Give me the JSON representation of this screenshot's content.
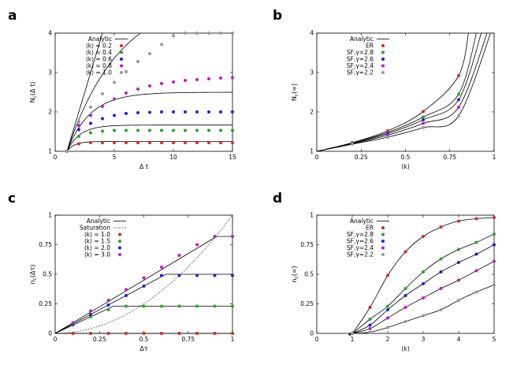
{
  "figure": {
    "panel_letters": [
      "a",
      "b",
      "c",
      "d"
    ]
  },
  "chart_data": [
    {
      "panel": "a",
      "type": "line",
      "xlabel": "Δ t",
      "ylabel": "N_c(Δ t)",
      "xlim": [
        0,
        15
      ],
      "ylim": [
        1,
        4
      ],
      "xticks": [
        0,
        5,
        10,
        15
      ],
      "yticks": [
        1,
        2,
        3,
        4
      ],
      "legend_position": "top-left",
      "legend_title": "Analytic",
      "colors": [
        "#d62728",
        "#2ca02c",
        "#1f1fd6",
        "#c21bc2",
        "#999999"
      ],
      "x": [
        1,
        2,
        3,
        4,
        5,
        6,
        7,
        8,
        9,
        10,
        11,
        12,
        13,
        14,
        15
      ],
      "series": [
        {
          "name": "⟨k⟩ = 0.2",
          "k": 0.2,
          "values": [
            1.0,
            1.19,
            1.22,
            1.22,
            1.22,
            1.22,
            1.22,
            1.22,
            1.22,
            1.22,
            1.22,
            1.22,
            1.22,
            1.22,
            1.22
          ]
        },
        {
          "name": "⟨k⟩ = 0.4",
          "k": 0.4,
          "values": [
            1.0,
            1.38,
            1.47,
            1.51,
            1.53,
            1.53,
            1.53,
            1.53,
            1.53,
            1.53,
            1.53,
            1.53,
            1.53,
            1.53,
            1.53
          ]
        },
        {
          "name": "⟨k⟩ = 0.6",
          "k": 0.6,
          "values": [
            1.0,
            1.55,
            1.71,
            1.83,
            1.91,
            1.96,
            1.98,
            1.99,
            2.0,
            2.0,
            2.0,
            2.0,
            2.0,
            2.0,
            2.0
          ]
        },
        {
          "name": "⟨k⟩ = 0.8",
          "k": 0.8,
          "values": [
            1.0,
            1.66,
            1.91,
            2.14,
            2.33,
            2.48,
            2.58,
            2.66,
            2.72,
            2.76,
            2.8,
            2.82,
            2.84,
            2.86,
            2.87
          ]
        },
        {
          "name": "⟨k⟩ = 1.0",
          "k": 1.0,
          "values": [
            1.0,
            1.75,
            2.12,
            2.46,
            2.75,
            3.02,
            3.28,
            3.48,
            3.71,
            3.93,
            4.0,
            4.0,
            4.0,
            4.0,
            4.0
          ]
        }
      ]
    },
    {
      "panel": "b",
      "type": "line",
      "xlabel": "⟨k⟩",
      "ylabel": "N_c(∞)",
      "xlim": [
        0,
        1
      ],
      "ylim": [
        1,
        4
      ],
      "xticks": [
        "0",
        "0.25",
        "0.5",
        "0.75",
        "1"
      ],
      "yticks": [
        1,
        2,
        3,
        4
      ],
      "legend_position": "top-left",
      "legend_title": "Analytic",
      "colors": [
        "#d62728",
        "#2ca02c",
        "#1f1fd6",
        "#c21bc2",
        "#999999"
      ],
      "x": [
        0.2,
        0.4,
        0.6,
        0.8
      ],
      "series": [
        {
          "name": "ER",
          "values": [
            1.22,
            1.52,
            2.01,
            2.92
          ]
        },
        {
          "name": "SF,γ=2.8",
          "values": [
            1.21,
            1.48,
            1.87,
            2.45
          ]
        },
        {
          "name": "SF,γ=2.6",
          "values": [
            1.2,
            1.45,
            1.8,
            2.31
          ]
        },
        {
          "name": "SF,γ=2.4",
          "values": [
            1.19,
            1.41,
            1.71,
            2.12
          ]
        },
        {
          "name": "SF,γ=2.2",
          "values": [
            1.18,
            1.36,
            1.6,
            1.9
          ]
        }
      ]
    },
    {
      "panel": "c",
      "type": "line",
      "xlabel": "Δτ",
      "ylabel": "n_c(Δτ)",
      "xlim": [
        0,
        1
      ],
      "ylim": [
        0,
        1
      ],
      "xticks": [
        "0",
        "0.25",
        "0.5",
        "0.75",
        "1"
      ],
      "yticks": [
        "0",
        "0.25",
        "0.5",
        "0.75",
        "1"
      ],
      "legend_position": "top-left",
      "legend_title": "Analytic",
      "saturation_label": "Saturation",
      "colors": [
        "#d62728",
        "#2ca02c",
        "#1f1fd6",
        "#c21bc2"
      ],
      "x": [
        0.1,
        0.2,
        0.3,
        0.4,
        0.5,
        0.6,
        0.7,
        0.8,
        0.9,
        1.0
      ],
      "series": [
        {
          "name": "⟨k⟩ = 1.0",
          "k": 1.0,
          "plateau": 0.0,
          "values": [
            0.0,
            0.0,
            0.0,
            0.0,
            0.0,
            0.0,
            0.0,
            0.0,
            0.0,
            0.0
          ]
        },
        {
          "name": "⟨k⟩ = 1.5",
          "k": 1.5,
          "plateau": 0.23,
          "values": [
            0.07,
            0.14,
            0.2,
            0.23,
            0.23,
            0.23,
            0.23,
            0.23,
            0.23,
            0.23
          ]
        },
        {
          "name": "⟨k⟩ = 2.0",
          "k": 2.0,
          "plateau": 0.5,
          "values": [
            0.08,
            0.16,
            0.24,
            0.32,
            0.4,
            0.49,
            0.49,
            0.49,
            0.49,
            0.49
          ]
        },
        {
          "name": "⟨k⟩ = 3.0",
          "k": 3.0,
          "plateau": 0.82,
          "values": [
            0.09,
            0.19,
            0.28,
            0.37,
            0.47,
            0.56,
            0.66,
            0.75,
            0.82,
            0.82
          ]
        }
      ]
    },
    {
      "panel": "d",
      "type": "line",
      "xlabel": "⟨k⟩",
      "ylabel": "n_c(∞)",
      "xlim": [
        0,
        5
      ],
      "ylim": [
        0,
        1
      ],
      "xticks": [
        "0",
        "1",
        "2",
        "3",
        "4",
        "5"
      ],
      "yticks": [
        "0",
        "0.25",
        "0.5",
        "0.75",
        "1"
      ],
      "legend_position": "top-left",
      "legend_title": "Analytic",
      "colors": [
        "#d62728",
        "#2ca02c",
        "#1f1fd6",
        "#c21bc2",
        "#999999"
      ],
      "x": [
        1.0,
        1.5,
        2.0,
        2.5,
        3.0,
        3.5,
        4.0,
        4.5,
        5.0
      ],
      "series": [
        {
          "name": "ER",
          "values": [
            0.0,
            0.22,
            0.49,
            0.69,
            0.82,
            0.9,
            0.95,
            0.97,
            0.98
          ]
        },
        {
          "name": "SF,γ=2.8",
          "values": [
            0.0,
            0.12,
            0.23,
            0.38,
            0.52,
            0.63,
            0.71,
            0.77,
            0.84
          ]
        },
        {
          "name": "SF,γ=2.6",
          "values": [
            0.0,
            0.07,
            0.2,
            0.32,
            0.42,
            0.52,
            0.6,
            0.67,
            0.75
          ]
        },
        {
          "name": "SF,γ=2.4",
          "values": [
            0.0,
            0.04,
            0.13,
            0.22,
            0.3,
            0.38,
            0.45,
            0.53,
            0.61
          ]
        },
        {
          "name": "SF,γ=2.2",
          "values": [
            0.0,
            0.01,
            0.05,
            0.1,
            0.15,
            0.2,
            0.28,
            0.35,
            0.41
          ]
        }
      ]
    }
  ]
}
